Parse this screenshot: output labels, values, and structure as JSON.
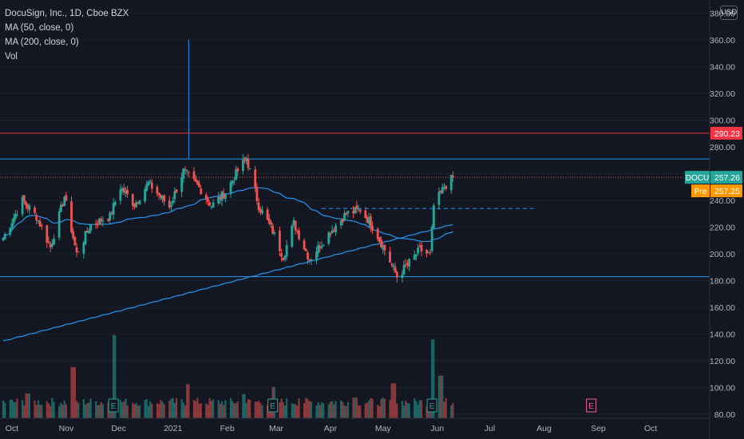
{
  "legend": {
    "title": "DocuSign, Inc., 1D, Cboe BZX",
    "ma50": "MA (50, close, 0)",
    "ma200": "MA (200, close, 0)",
    "vol": "Vol"
  },
  "currency_label": "USD",
  "colors": {
    "background": "#131722",
    "up": "#26a69a",
    "down": "#ef5350",
    "ma": "#2196f3",
    "grid": "#1e222d",
    "axis_text": "#b2b5be",
    "resistance_red": "#f23645",
    "pre_badge": "#ff9800"
  },
  "chart_data": {
    "type": "candlestick",
    "symbol": "DOCU",
    "interval": "1D",
    "exchange": "Cboe BZX",
    "y_axis": {
      "ticks": [
        80,
        100,
        120,
        140,
        160,
        180,
        200,
        220,
        240,
        260,
        280,
        300,
        320,
        340,
        360,
        380
      ],
      "tick_labels": [
        "80.00",
        "100.00",
        "120.00",
        "140.00",
        "160.00",
        "180.00",
        "200.00",
        "220.00",
        "240.00",
        "260.00",
        "280.00",
        "300.00",
        "320.00",
        "340.00",
        "360.00",
        "380.00"
      ],
      "range": [
        70,
        385
      ]
    },
    "x_axis": {
      "labels": [
        "Oct",
        "Nov",
        "Dec",
        "2021",
        "Feb",
        "Mar",
        "Apr",
        "May",
        "Jun",
        "Jul",
        "Aug",
        "Sep",
        "Oct"
      ],
      "range": [
        "2020-10-01",
        "2021-10-31"
      ]
    },
    "earnings_markers": [
      "2020-12-03",
      "2021-03-04",
      "2021-06-03",
      "2021-09-02"
    ],
    "horizontal_lines": [
      {
        "price": 290.23,
        "color": "#f23645",
        "label": "290.23"
      },
      {
        "price": 271,
        "color": "#2196f3"
      },
      {
        "price": 183,
        "color": "#2196f3"
      },
      {
        "price": 257.26,
        "color": "#ef5350",
        "style": "dotted"
      },
      {
        "price": 234,
        "color": "#2196f3",
        "style": "dashed",
        "from": "2021-04-01",
        "to": "2021-07-31"
      }
    ],
    "vertical_spike": {
      "date": "2021-01-15",
      "from": 271,
      "to": 360
    },
    "last_price": {
      "symbol": "DOCU",
      "value": "257.26"
    },
    "pre_market": {
      "label": "Pre",
      "value": "257.25"
    },
    "price_keypoints": [
      [
        "2020-10-01",
        212
      ],
      [
        "2020-10-12",
        240
      ],
      [
        "2020-10-20",
        228
      ],
      [
        "2020-10-28",
        205
      ],
      [
        "2020-11-05",
        243
      ],
      [
        "2020-11-12",
        200
      ],
      [
        "2020-11-20",
        222
      ],
      [
        "2020-12-01",
        228
      ],
      [
        "2020-12-07",
        250
      ],
      [
        "2020-12-15",
        237
      ],
      [
        "2020-12-23",
        253
      ],
      [
        "2021-01-04",
        235
      ],
      [
        "2021-01-12",
        262
      ],
      [
        "2021-01-22",
        248
      ],
      [
        "2021-01-28",
        236
      ],
      [
        "2021-02-05",
        246
      ],
      [
        "2021-02-12",
        262
      ],
      [
        "2021-02-17",
        272
      ],
      [
        "2021-02-24",
        236
      ],
      [
        "2021-03-04",
        217
      ],
      [
        "2021-03-10",
        198
      ],
      [
        "2021-03-16",
        223
      ],
      [
        "2021-03-25",
        196
      ],
      [
        "2021-04-06",
        217
      ],
      [
        "2021-04-15",
        230
      ],
      [
        "2021-04-23",
        233
      ],
      [
        "2021-04-30",
        221
      ],
      [
        "2021-05-07",
        203
      ],
      [
        "2021-05-14",
        183
      ],
      [
        "2021-05-20",
        192
      ],
      [
        "2021-05-27",
        203
      ],
      [
        "2021-06-02",
        199
      ],
      [
        "2021-06-04",
        236
      ],
      [
        "2021-06-10",
        250
      ],
      [
        "2021-06-15",
        257.26
      ]
    ],
    "volume_keypoints_millions": [
      [
        "2020-10-15",
        3.5
      ],
      [
        "2020-11-10",
        7.2
      ],
      [
        "2020-12-04",
        11.7
      ],
      [
        "2021-01-15",
        4.8
      ],
      [
        "2021-02-15",
        3.4
      ],
      [
        "2021-03-05",
        4.4
      ],
      [
        "2021-03-20",
        2.8
      ],
      [
        "2021-04-20",
        2.9
      ],
      [
        "2021-05-12",
        4.9
      ],
      [
        "2021-06-04",
        11.1
      ],
      [
        "2021-06-08",
        6.0
      ]
    ]
  }
}
